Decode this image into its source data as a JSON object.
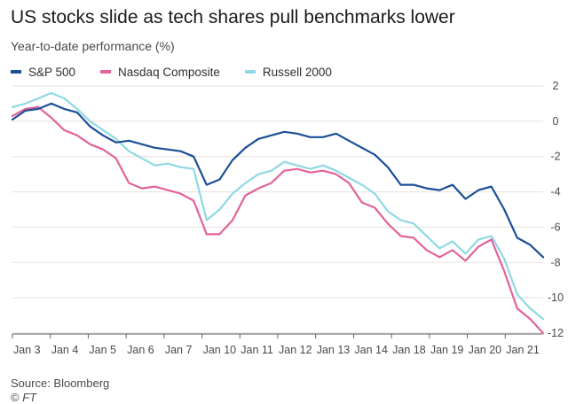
{
  "header": {
    "title": "US stocks slide as tech shares pull benchmarks lower",
    "subtitle": "Year-to-date performance (%)"
  },
  "footer": {
    "source": "Source: Bloomberg",
    "credit_symbol": "©",
    "credit_name": "FT"
  },
  "chart_data": {
    "type": "line",
    "title": "US stocks slide as tech shares pull benchmarks lower",
    "subtitle": "Year-to-date performance (%)",
    "xlabel": "",
    "ylabel": "",
    "x": [
      "Jan 3",
      "Jan 3",
      "Jan 3",
      "Jan 4",
      "Jan 4",
      "Jan 4",
      "Jan 5",
      "Jan 5",
      "Jan 5",
      "Jan 6",
      "Jan 6",
      "Jan 6",
      "Jan 7",
      "Jan 7",
      "Jan 7",
      "Jan 10",
      "Jan 10",
      "Jan 10",
      "Jan 11",
      "Jan 11",
      "Jan 11",
      "Jan 12",
      "Jan 12",
      "Jan 12",
      "Jan 13",
      "Jan 13",
      "Jan 13",
      "Jan 14",
      "Jan 14",
      "Jan 14",
      "Jan 18",
      "Jan 18",
      "Jan 18",
      "Jan 19",
      "Jan 19",
      "Jan 19",
      "Jan 20",
      "Jan 20",
      "Jan 20",
      "Jan 21",
      "Jan 21",
      "Jan 21"
    ],
    "x_ticks": [
      "Jan 3",
      "Jan 4",
      "Jan 5",
      "Jan 6",
      "Jan 7",
      "Jan 10",
      "Jan 11",
      "Jan 12",
      "Jan 13",
      "Jan 14",
      "Jan 18",
      "Jan 19",
      "Jan 20",
      "Jan 21"
    ],
    "ylim": [
      -12,
      2
    ],
    "y_ticks": [
      2,
      0,
      -2,
      -4,
      -6,
      -8,
      -10,
      -12
    ],
    "grid": true,
    "legend_position": "top-left",
    "series": [
      {
        "name": "S&P 500",
        "color": "#1b4f96",
        "values": [
          0.1,
          0.6,
          0.7,
          1.0,
          0.7,
          0.5,
          -0.3,
          -0.8,
          -1.2,
          -1.1,
          -1.3,
          -1.5,
          -1.6,
          -1.7,
          -2.0,
          -3.6,
          -3.3,
          -2.2,
          -1.5,
          -1.0,
          -0.8,
          -0.6,
          -0.7,
          -0.9,
          -0.9,
          -0.7,
          -1.1,
          -1.5,
          -1.9,
          -2.6,
          -3.6,
          -3.6,
          -3.8,
          -3.9,
          -3.6,
          -4.4,
          -3.9,
          -3.7,
          -5.0,
          -6.6,
          -7.0,
          -7.7
        ]
      },
      {
        "name": "Nasdaq Composite",
        "color": "#e2639a",
        "values": [
          0.3,
          0.7,
          0.8,
          0.2,
          -0.5,
          -0.8,
          -1.3,
          -1.6,
          -2.1,
          -3.5,
          -3.8,
          -3.7,
          -3.9,
          -4.1,
          -4.5,
          -6.4,
          -6.4,
          -5.6,
          -4.2,
          -3.8,
          -3.5,
          -2.8,
          -2.7,
          -2.9,
          -2.8,
          -3.0,
          -3.5,
          -4.6,
          -4.9,
          -5.8,
          -6.5,
          -6.6,
          -7.3,
          -7.7,
          -7.3,
          -7.9,
          -7.1,
          -6.7,
          -8.5,
          -10.6,
          -11.2,
          -12.0
        ]
      },
      {
        "name": "Russell 2000",
        "color": "#8fd8e4",
        "values": [
          0.8,
          1.0,
          1.3,
          1.6,
          1.3,
          0.7,
          0.0,
          -0.5,
          -1.0,
          -1.7,
          -2.1,
          -2.5,
          -2.4,
          -2.6,
          -2.7,
          -5.6,
          -5.0,
          -4.1,
          -3.5,
          -3.0,
          -2.8,
          -2.3,
          -2.5,
          -2.7,
          -2.5,
          -2.8,
          -3.2,
          -3.6,
          -4.1,
          -5.1,
          -5.6,
          -5.8,
          -6.5,
          -7.2,
          -6.8,
          -7.5,
          -6.7,
          -6.5,
          -7.8,
          -9.8,
          -10.6,
          -11.2
        ]
      }
    ]
  }
}
